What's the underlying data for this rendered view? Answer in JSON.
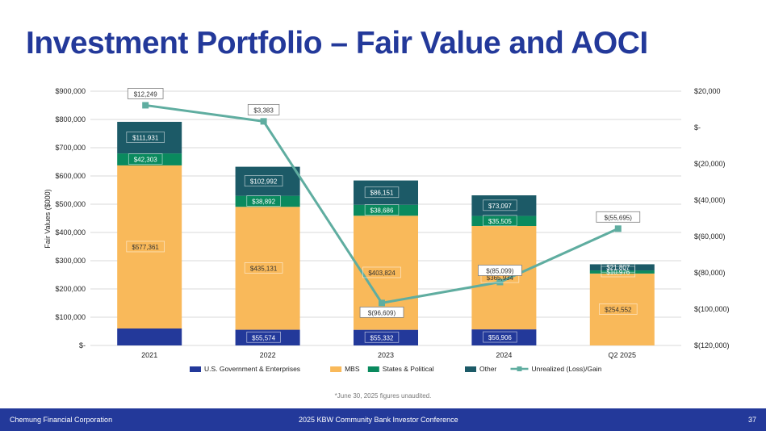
{
  "slide": {
    "title": "Investment Portfolio – Fair Value and AOCI",
    "footnote": "*June 30, 2025 figures unaudited.",
    "footer_left": "Chemung Financial Corporation",
    "footer_center": "2025 KBW Community Bank Investor Conference",
    "page_number": "37"
  },
  "chart_data": {
    "type": "bar",
    "stacked": true,
    "categories": [
      "2021",
      "2022",
      "2023",
      "2024",
      "Q2 2025"
    ],
    "ylabel": "Fair Values ($000)",
    "ylim": [
      0,
      900000
    ],
    "y_ticks": [
      0,
      100000,
      200000,
      300000,
      400000,
      500000,
      600000,
      700000,
      800000,
      900000
    ],
    "y_tick_labels": [
      "$-",
      "$100,000",
      "$200,000",
      "$300,000",
      "$400,000",
      "$500,000",
      "$600,000",
      "$700,000",
      "$800,000",
      "$900,000"
    ],
    "y2lim": [
      -120000,
      20000
    ],
    "y2_ticks": [
      -120000,
      -100000,
      -80000,
      -60000,
      -40000,
      -20000,
      0,
      20000
    ],
    "y2_tick_labels": [
      "$(120,000)",
      "$(100,000)",
      "$(80,000)",
      "$(60,000)",
      "$(40,000)",
      "$(20,000)",
      "$-",
      "$20,000"
    ],
    "grid": true,
    "legend_position": "bottom",
    "series": [
      {
        "name": "U.S. Government & Enterprises",
        "color": "#23399a",
        "values": [
          60000,
          55574,
          55332,
          56906,
          0
        ],
        "labels": [
          "",
          "$55,574",
          "$55,332",
          "$56,906",
          ""
        ]
      },
      {
        "name": "MBS",
        "color": "#f9b95a",
        "values": [
          577361,
          435131,
          403824,
          365934,
          254552
        ],
        "labels": [
          "$577,361",
          "$435,131",
          "$403,824",
          "$365,934",
          "$254,552"
        ]
      },
      {
        "name": "States & Political",
        "color": "#0a8a5e",
        "values": [
          42303,
          38892,
          38686,
          35505,
          10976
        ],
        "labels": [
          "$42,303",
          "$38,892",
          "$38,686",
          "$35,505",
          "$10,976"
        ]
      },
      {
        "name": "Other",
        "color": "#1c5a67",
        "values": [
          111931,
          102992,
          86151,
          73097,
          21807
        ],
        "labels": [
          "$111,931",
          "$102,992",
          "$86,151",
          "$73,097",
          "$21,807"
        ]
      }
    ],
    "line_series": {
      "name": "Unrealized (Loss)/Gain",
      "color": "#5fada0",
      "axis": "secondary",
      "values": [
        12249,
        3383,
        -96609,
        -85099,
        -55695
      ],
      "labels": [
        "$12,249",
        "$3,383",
        "$(96,609)",
        "$(85,099)",
        "$(55,695)"
      ]
    }
  }
}
